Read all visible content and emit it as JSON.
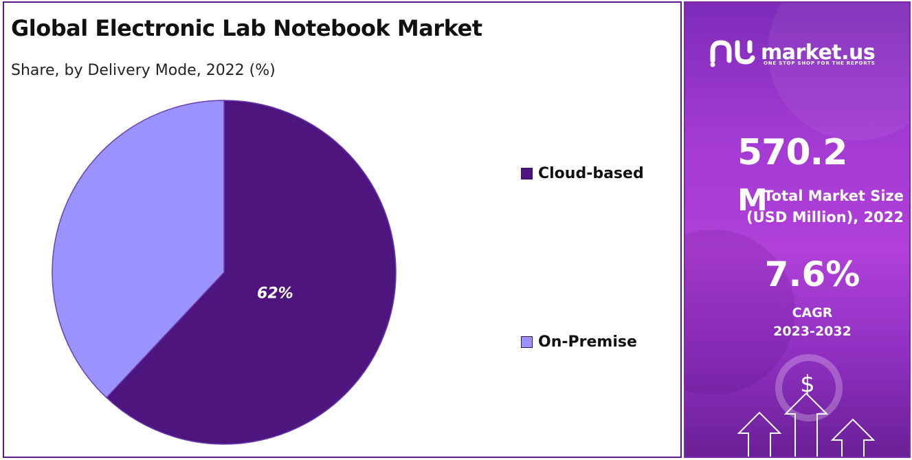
{
  "chart_data": {
    "type": "pie",
    "title": "Global Electronic Lab Notebook Market",
    "subtitle": "Share, by Delivery Mode, 2022 (%)",
    "categories": [
      "Cloud-based",
      "On-Premise"
    ],
    "values": [
      62,
      38
    ],
    "data_labels": [
      "62%",
      ""
    ],
    "colors": [
      "#4f157e",
      "#9a92fd"
    ],
    "legend_position": "right",
    "start_angle": "12 o'clock, clockwise"
  },
  "side_panel": {
    "brand_name": "market.us",
    "brand_tagline": "ONE STOP SHOP FOR THE REPORTS",
    "market_size_value": "570.2",
    "market_size_unit": "M",
    "market_size_label_line1": "Total Market Size",
    "market_size_label_line2": "(USD Million), 2022",
    "cagr_value": "7.6%",
    "cagr_label_line1": "CAGR",
    "cagr_label_line2": "2023-2032",
    "dollar_icon_glyph": "$",
    "icons": [
      "market-us-logo-icon",
      "dollar-icon",
      "arrow-up-icon"
    ]
  }
}
